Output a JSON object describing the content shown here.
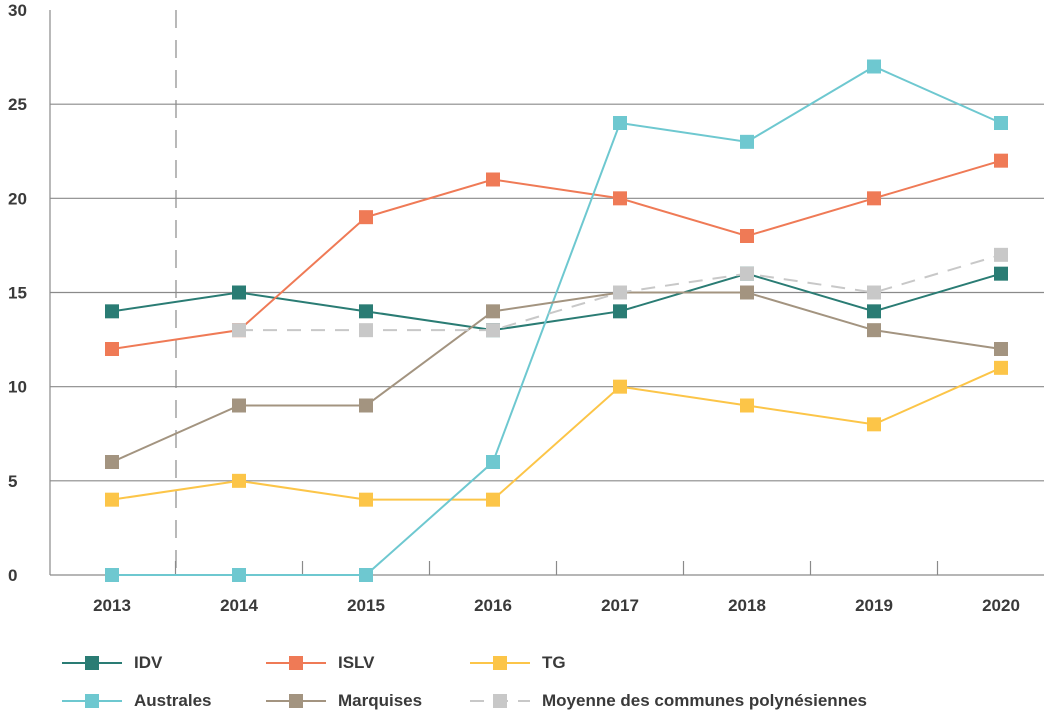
{
  "chart_data": {
    "type": "line",
    "categories": [
      "2013",
      "2014",
      "2015",
      "2016",
      "2017",
      "2018",
      "2019",
      "2020"
    ],
    "ylim": [
      0,
      30
    ],
    "yticks": [
      "0",
      "5",
      "10",
      "15",
      "20",
      "25",
      "30"
    ],
    "grid": true,
    "legend_position": "bottom",
    "series": [
      {
        "name": "IDV",
        "color": "#2a7c74",
        "dashed": false,
        "values": [
          14,
          15,
          14,
          13,
          14,
          16,
          14,
          16
        ]
      },
      {
        "name": "ISLV",
        "color": "#ef7a56",
        "dashed": false,
        "values": [
          12,
          13,
          19,
          21,
          20,
          18,
          20,
          22
        ]
      },
      {
        "name": "TG",
        "color": "#fcc548",
        "dashed": false,
        "values": [
          4,
          5,
          4,
          4,
          10,
          9,
          8,
          11
        ]
      },
      {
        "name": "Australes",
        "color": "#6ec8d0",
        "dashed": false,
        "values": [
          0,
          0,
          0,
          6,
          24,
          23,
          27,
          24
        ]
      },
      {
        "name": "Marquises",
        "color": "#a39480",
        "dashed": false,
        "values": [
          6,
          9,
          9,
          14,
          15,
          15,
          13,
          12
        ]
      },
      {
        "name": "Moyenne des communes polynésiennes",
        "color": "#c8c8c8",
        "dashed": true,
        "values": [
          null,
          13,
          13,
          13,
          15,
          16,
          15,
          17
        ]
      }
    ]
  }
}
